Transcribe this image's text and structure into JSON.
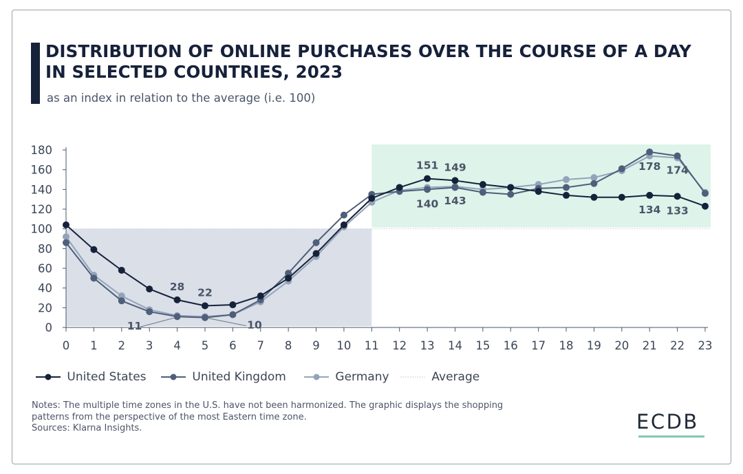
{
  "title": "DISTRIBUTION OF ONLINE PURCHASES OVER THE COURSE OF A DAY IN SELECTED COUNTRIES, 2023",
  "subtitle": "as an index in relation to the average (i.e. 100)",
  "chart_data": {
    "type": "line",
    "title": "DISTRIBUTION OF ONLINE PURCHASES OVER THE COURSE OF A DAY IN SELECTED COUNTRIES, 2023",
    "subtitle": "as an index in relation to the average (i.e. 100)",
    "xlabel": "",
    "ylabel": "",
    "x": [
      0,
      1,
      2,
      3,
      4,
      5,
      6,
      7,
      8,
      9,
      10,
      11,
      12,
      13,
      14,
      15,
      16,
      17,
      18,
      19,
      20,
      21,
      22,
      23
    ],
    "xlim": [
      0,
      23
    ],
    "ylim": [
      0,
      180
    ],
    "yticks": [
      0,
      20,
      40,
      60,
      80,
      100,
      120,
      140,
      160,
      180
    ],
    "grid": false,
    "legend_position": "bottom-left",
    "series": [
      {
        "name": "United States",
        "color": "#16213a",
        "values": [
          104,
          79,
          58,
          39,
          28,
          22,
          23,
          32,
          50,
          75,
          104,
          131,
          142,
          151,
          149,
          145,
          142,
          138,
          134,
          132,
          132,
          134,
          133,
          123
        ]
      },
      {
        "name": "United Kingdom",
        "color": "#4f5e79",
        "values": [
          86,
          50,
          27,
          16,
          11,
          10,
          13,
          28,
          55,
          86,
          114,
          135,
          138,
          140,
          142,
          137,
          135,
          141,
          142,
          146,
          161,
          178,
          174,
          136
        ]
      },
      {
        "name": "Germany",
        "color": "#94a3ba",
        "values": [
          92,
          53,
          32,
          18,
          12,
          11,
          13,
          26,
          47,
          72,
          102,
          127,
          139,
          142,
          143,
          140,
          142,
          145,
          150,
          152,
          159,
          174,
          172,
          137
        ]
      }
    ],
    "reference_line": {
      "name": "Average",
      "value": 100,
      "color": "#c7cdd6"
    },
    "shaded_regions": [
      {
        "from_x": 0,
        "to_x": 11,
        "from_y": 0,
        "to_y": 100,
        "color": "#dadfe8"
      },
      {
        "from_x": 11,
        "to_x": 23,
        "from_y": 100,
        "to_y": 180,
        "color": "#def3ea"
      }
    ],
    "annotations": [
      {
        "text": "28",
        "series": "United States",
        "x": 4,
        "y": 28,
        "placement": "above"
      },
      {
        "text": "22",
        "series": "United States",
        "x": 5,
        "y": 22,
        "placement": "above"
      },
      {
        "text": "11",
        "series": "United Kingdom",
        "x": 4,
        "y": 11,
        "placement": "below-left"
      },
      {
        "text": "10",
        "series": "United Kingdom",
        "x": 5,
        "y": 10,
        "placement": "below-right"
      },
      {
        "text": "151",
        "series": "United States",
        "x": 13,
        "y": 151,
        "placement": "above"
      },
      {
        "text": "149",
        "series": "United States",
        "x": 14,
        "y": 149,
        "placement": "above"
      },
      {
        "text": "140",
        "series": "United Kingdom",
        "x": 13,
        "y": 140,
        "placement": "below"
      },
      {
        "text": "143",
        "series": "Germany",
        "x": 14,
        "y": 143,
        "placement": "below"
      },
      {
        "text": "178",
        "series": "United Kingdom",
        "x": 21,
        "y": 178,
        "placement": "below"
      },
      {
        "text": "174",
        "series": "United Kingdom",
        "x": 22,
        "y": 174,
        "placement": "below"
      },
      {
        "text": "134",
        "series": "United States",
        "x": 21,
        "y": 134,
        "placement": "below"
      },
      {
        "text": "133",
        "series": "United States",
        "x": 22,
        "y": 133,
        "placement": "below"
      }
    ]
  },
  "legend": [
    {
      "label": "United States",
      "color": "#16213a"
    },
    {
      "label": "United Kingdom",
      "color": "#4f5e79"
    },
    {
      "label": "Germany",
      "color": "#94a3ba"
    },
    {
      "label": "Average",
      "color": "#c7cdd6"
    }
  ],
  "notes": {
    "line1": "Notes: The multiple time zones in the U.S. have not been harmonized. The graphic displays the shopping",
    "line2": "patterns from the perspective of the most Eastern time zone.",
    "sources": "Sources: Klarna Insights."
  },
  "logo": "ECDB",
  "colors": {
    "title_bar": "#16213a",
    "logo_underline": "#7fc8b2"
  }
}
